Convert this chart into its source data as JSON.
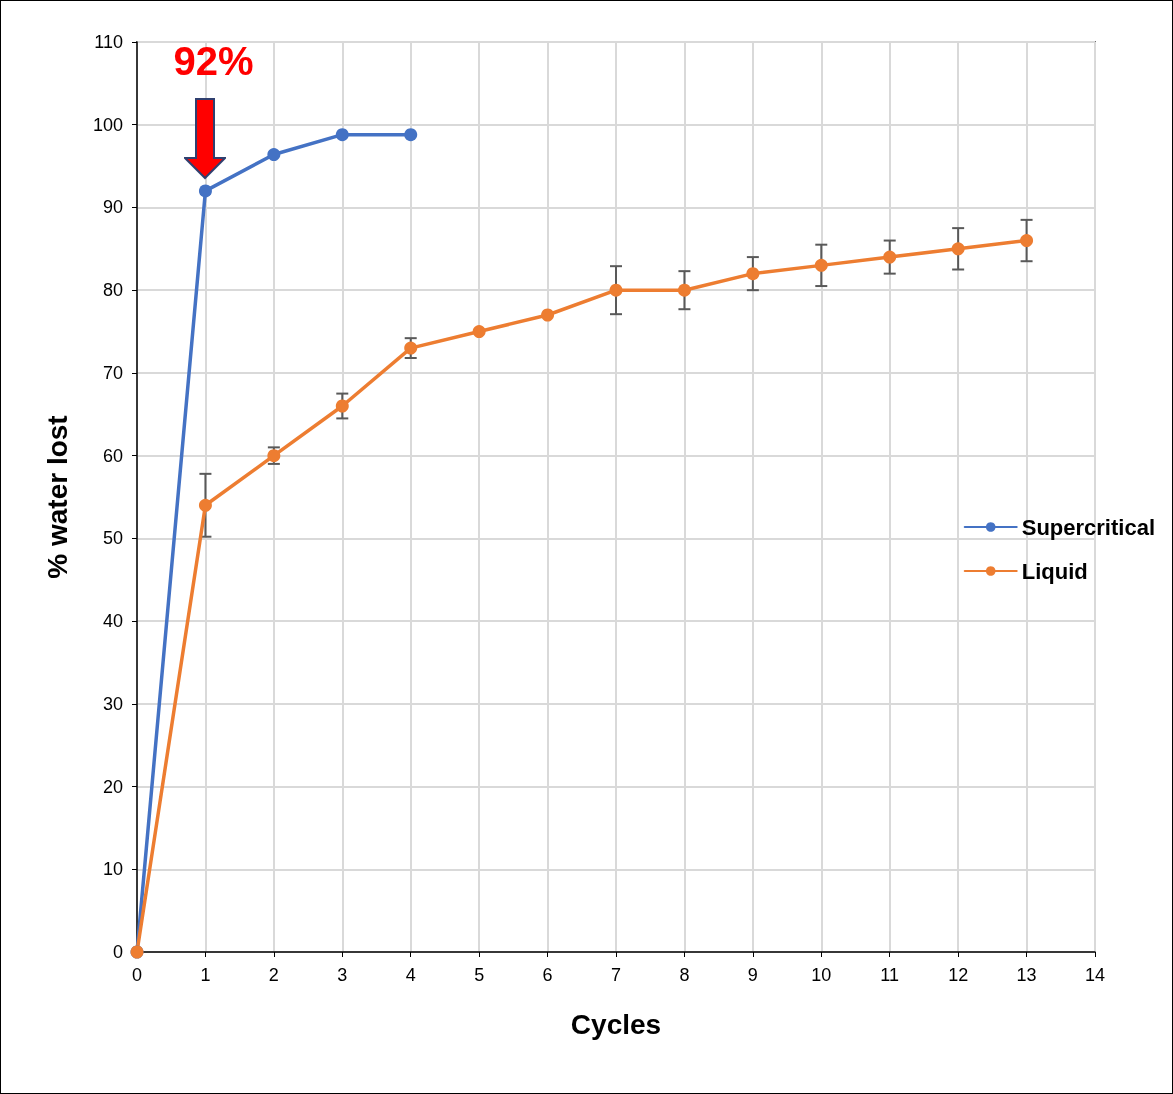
{
  "chart_data": {
    "type": "line",
    "xlabel": "Cycles",
    "ylabel": "% water lost",
    "xlim": [
      0,
      14
    ],
    "xticks": [
      0,
      1,
      2,
      3,
      4,
      5,
      6,
      7,
      8,
      9,
      10,
      11,
      12,
      13,
      14
    ],
    "ylim": [
      0,
      110
    ],
    "yticks": [
      0,
      10,
      20,
      30,
      40,
      50,
      60,
      70,
      80,
      90,
      100,
      110
    ],
    "grid": true,
    "legend": "right",
    "marker": "circle",
    "line_style": "solid",
    "annotations": [
      {
        "text": "92%",
        "x": 1,
        "y": 92
      }
    ],
    "series": [
      {
        "name": "Supercritical",
        "color": "#4472c4",
        "x": [
          0,
          1,
          2,
          3,
          4
        ],
        "values": [
          0,
          92,
          96.4,
          98.8,
          98.8
        ]
      },
      {
        "name": "Liquid",
        "color": "#ed7d31",
        "x": [
          0,
          1,
          2,
          3,
          4,
          5,
          6,
          7,
          8,
          9,
          10,
          11,
          12,
          13
        ],
        "values": [
          0,
          54,
          60,
          66,
          73,
          75,
          77,
          80,
          80,
          82,
          83,
          84,
          85,
          86
        ],
        "errors": [
          null,
          3.8,
          1,
          1.5,
          1.2,
          null,
          null,
          2.9,
          2.3,
          2,
          2.5,
          2,
          2.5,
          2.5
        ]
      }
    ]
  }
}
